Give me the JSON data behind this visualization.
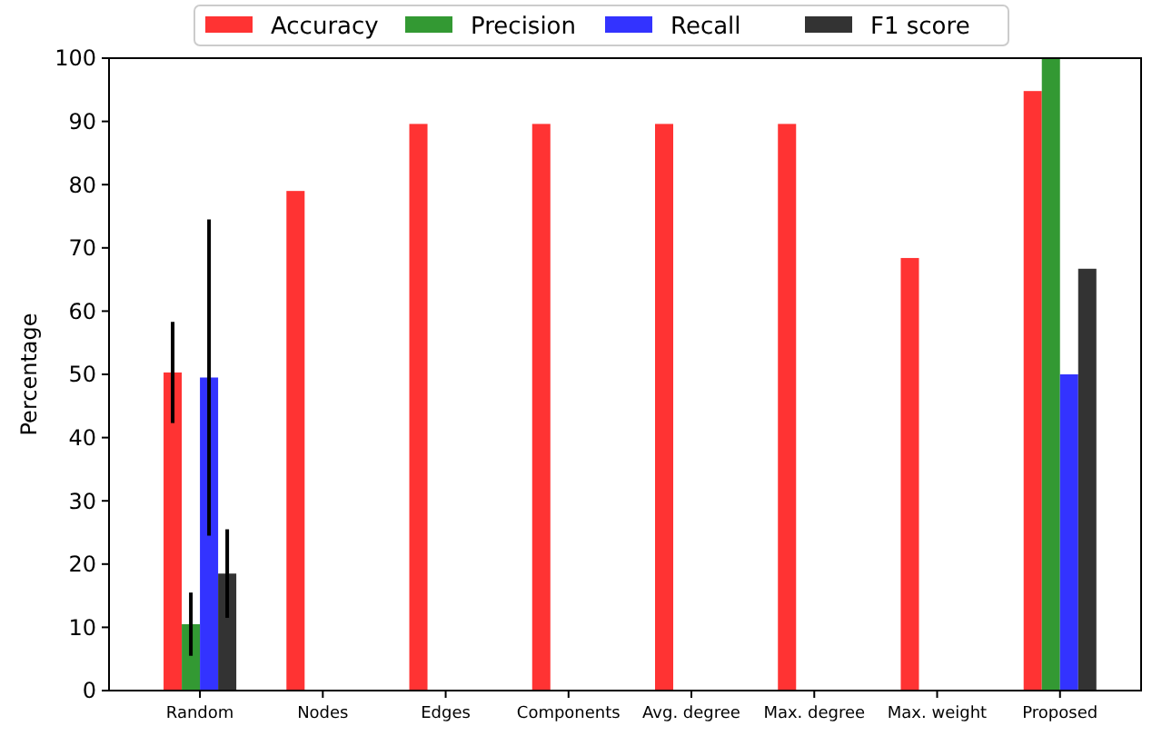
{
  "chart_data": {
    "type": "bar",
    "ylabel": "Percentage",
    "categories": [
      "Random",
      "Nodes",
      "Edges",
      "Components",
      "Avg. degree",
      "Max. degree",
      "Max. weight",
      "Proposed"
    ],
    "series": [
      {
        "name": "Accuracy",
        "color": "#ff3333",
        "values": [
          50.3,
          79,
          89.6,
          89.6,
          89.6,
          89.6,
          68.4,
          94.8
        ],
        "errors": [
          8,
          null,
          null,
          null,
          null,
          null,
          null,
          null
        ]
      },
      {
        "name": "Precision",
        "color": "#339933",
        "values": [
          10.5,
          0,
          0,
          0,
          0,
          0,
          0,
          100
        ],
        "errors": [
          5,
          null,
          null,
          null,
          null,
          null,
          null,
          null
        ]
      },
      {
        "name": "Recall",
        "color": "#3333ff",
        "values": [
          49.5,
          0,
          0,
          0,
          0,
          0,
          0,
          50
        ],
        "errors": [
          25,
          null,
          null,
          null,
          null,
          null,
          null,
          null
        ]
      },
      {
        "name": "F1 score",
        "color": "#333333",
        "values": [
          18.5,
          0,
          0,
          0,
          0,
          0,
          0,
          66.7
        ],
        "errors": [
          7,
          null,
          null,
          null,
          null,
          null,
          null,
          null
        ]
      }
    ],
    "ylim": [
      0,
      100
    ],
    "yticks": [
      0,
      10,
      20,
      30,
      40,
      50,
      60,
      70,
      80,
      90,
      100
    ],
    "grid": false,
    "legend": "top"
  }
}
